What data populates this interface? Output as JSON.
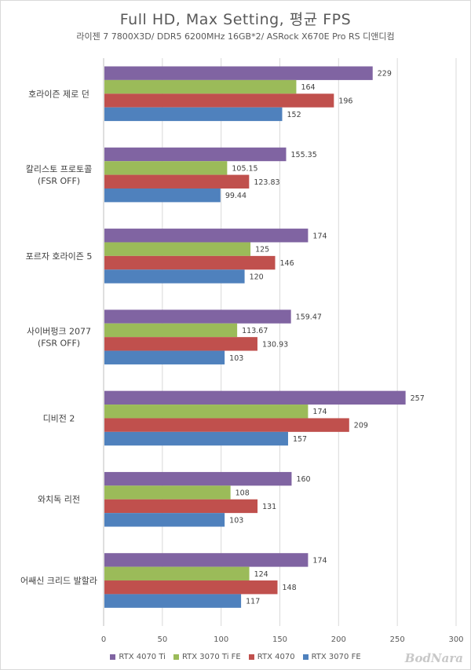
{
  "chart_data": {
    "type": "bar",
    "orientation": "horizontal",
    "title": "Full HD, Max Setting, 평균 FPS",
    "subtitle": "라이젠 7 7800X3D/ DDR5 6200MHz 16GB*2/ ASRock X670E Pro RS 디앤디컴",
    "categories": [
      [
        "호라이즌 제로 던"
      ],
      [
        "칼리스토 프로토콜",
        "(FSR OFF)"
      ],
      [
        "포르자 호라이즌 5"
      ],
      [
        "사이버펑크 2077",
        "(FSR OFF)"
      ],
      [
        "디비전 2"
      ],
      [
        "와치독 리전"
      ],
      [
        "어쌔신 크리드 발할라"
      ]
    ],
    "series": [
      {
        "name": "RTX 4070 Ti",
        "color": "#8064a2",
        "values": [
          229,
          155.35,
          174,
          159.47,
          257,
          160,
          174
        ],
        "labels": [
          "229",
          "155.35",
          "174",
          "159.47",
          "257",
          "160",
          "174"
        ]
      },
      {
        "name": "RTX 3070 Ti FE",
        "color": "#9bbb59",
        "values": [
          164,
          105.15,
          125,
          113.67,
          174,
          108,
          124
        ],
        "labels": [
          "164",
          "105.15",
          "125",
          "113.67",
          "174",
          "108",
          "124"
        ]
      },
      {
        "name": "RTX 4070",
        "color": "#c0504d",
        "values": [
          196,
          123.83,
          146,
          130.93,
          209,
          131,
          148
        ],
        "labels": [
          "196",
          "123.83",
          "146",
          "130.93",
          "209",
          "131",
          "148"
        ]
      },
      {
        "name": "RTX 3070 FE",
        "color": "#4f81bd",
        "values": [
          152,
          99.44,
          120,
          103,
          157,
          103,
          117
        ],
        "labels": [
          "152",
          "99.44",
          "120",
          "103",
          "157",
          "103",
          "117"
        ]
      }
    ],
    "xlim": [
      0,
      300
    ],
    "xticks": [
      0,
      50,
      100,
      150,
      200,
      250,
      300
    ],
    "grid": true,
    "legend_position": "bottom"
  },
  "watermark": "BodNara"
}
